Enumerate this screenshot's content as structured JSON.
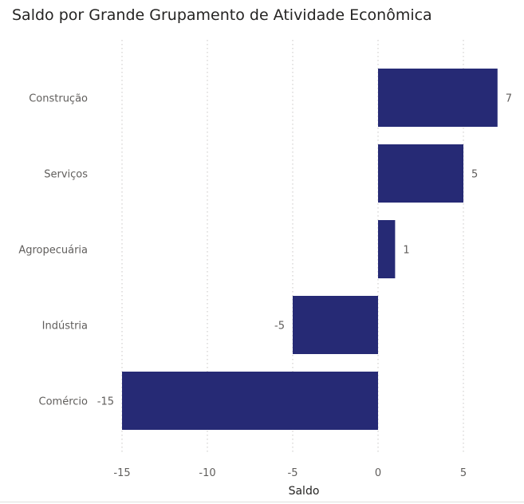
{
  "title": "Saldo por Grande Grupamento de Atividade Econômica",
  "colors": {
    "bar": "#262a75",
    "grid": "#c8c6c4"
  },
  "chart_data": {
    "type": "bar",
    "orientation": "horizontal",
    "title": "Saldo por Grande Grupamento de Atividade Econômica",
    "xlabel": "Saldo",
    "ylabel": "",
    "categories": [
      "Construção",
      "Serviços",
      "Agropecuária",
      "Indústria",
      "Comércio"
    ],
    "values": [
      7,
      5,
      1,
      -5,
      -15
    ],
    "data_labels": [
      "7",
      "5",
      "1",
      "-5",
      "-15"
    ],
    "xticks": [
      -15,
      -10,
      -5,
      0,
      5
    ],
    "xtick_labels": [
      "-15",
      "-10",
      "-5",
      "0",
      "5"
    ],
    "xlim": [
      -15,
      7
    ],
    "grid": "vertical dotted",
    "legend": "none"
  }
}
